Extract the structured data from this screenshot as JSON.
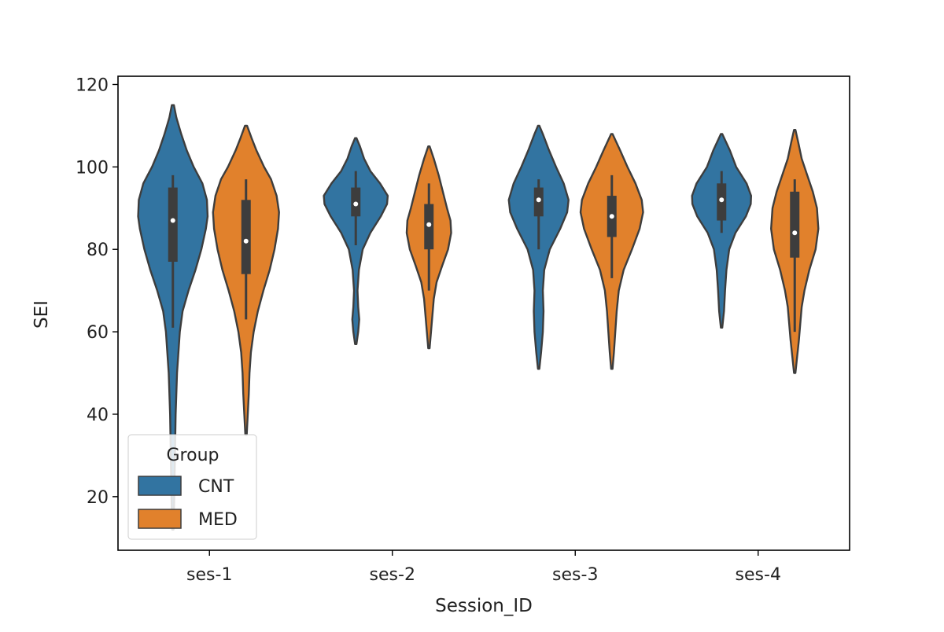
{
  "chart_data": {
    "type": "violin",
    "title": "",
    "xlabel": "Session_ID",
    "ylabel": "SEI",
    "ylim": [
      7,
      122
    ],
    "yticks": [
      20,
      40,
      60,
      80,
      100,
      120
    ],
    "categories": [
      "ses-1",
      "ses-2",
      "ses-3",
      "ses-4"
    ],
    "legend": {
      "title": "Group",
      "location": "lower left"
    },
    "series": [
      {
        "name": "CNT",
        "color": "#3274a1",
        "violins": [
          {
            "min": 12,
            "max": 115,
            "q1": 77,
            "median": 87,
            "q3": 95,
            "whisker_low": 61,
            "whisker_high": 98,
            "profile": [
              [
                12,
                0.02
              ],
              [
                20,
                0.04
              ],
              [
                30,
                0.06
              ],
              [
                40,
                0.08
              ],
              [
                50,
                0.12
              ],
              [
                60,
                0.2
              ],
              [
                65,
                0.28
              ],
              [
                70,
                0.45
              ],
              [
                75,
                0.65
              ],
              [
                80,
                0.82
              ],
              [
                85,
                0.95
              ],
              [
                88,
                1.0
              ],
              [
                92,
                0.98
              ],
              [
                96,
                0.85
              ],
              [
                100,
                0.6
              ],
              [
                104,
                0.4
              ],
              [
                108,
                0.24
              ],
              [
                112,
                0.1
              ],
              [
                115,
                0.03
              ]
            ]
          },
          {
            "min": 57,
            "max": 107,
            "q1": 88,
            "median": 91,
            "q3": 95,
            "whisker_low": 81,
            "whisker_high": 99,
            "profile": [
              [
                57,
                0.02
              ],
              [
                60,
                0.07
              ],
              [
                63,
                0.1
              ],
              [
                66,
                0.07
              ],
              [
                70,
                0.05
              ],
              [
                75,
                0.09
              ],
              [
                80,
                0.2
              ],
              [
                84,
                0.42
              ],
              [
                88,
                0.72
              ],
              [
                91,
                0.9
              ],
              [
                93,
                0.92
              ],
              [
                96,
                0.7
              ],
              [
                99,
                0.42
              ],
              [
                102,
                0.24
              ],
              [
                105,
                0.12
              ],
              [
                107,
                0.02
              ]
            ]
          },
          {
            "min": 51,
            "max": 110,
            "q1": 88,
            "median": 92,
            "q3": 95,
            "whisker_low": 80,
            "whisker_high": 97,
            "profile": [
              [
                51,
                0.02
              ],
              [
                55,
                0.07
              ],
              [
                60,
                0.12
              ],
              [
                65,
                0.14
              ],
              [
                70,
                0.12
              ],
              [
                75,
                0.16
              ],
              [
                80,
                0.32
              ],
              [
                85,
                0.62
              ],
              [
                89,
                0.82
              ],
              [
                92,
                0.86
              ],
              [
                96,
                0.72
              ],
              [
                100,
                0.5
              ],
              [
                104,
                0.3
              ],
              [
                108,
                0.12
              ],
              [
                110,
                0.02
              ]
            ]
          },
          {
            "min": 61,
            "max": 108,
            "q1": 87,
            "median": 92,
            "q3": 96,
            "whisker_low": 84,
            "whisker_high": 99,
            "profile": [
              [
                61,
                0.02
              ],
              [
                65,
                0.07
              ],
              [
                70,
                0.1
              ],
              [
                75,
                0.14
              ],
              [
                80,
                0.22
              ],
              [
                84,
                0.4
              ],
              [
                88,
                0.7
              ],
              [
                91,
                0.84
              ],
              [
                93,
                0.85
              ],
              [
                96,
                0.72
              ],
              [
                100,
                0.42
              ],
              [
                104,
                0.24
              ],
              [
                108,
                0.02
              ]
            ]
          }
        ]
      },
      {
        "name": "MED",
        "color": "#e1812c",
        "violins": [
          {
            "min": 35,
            "max": 110,
            "q1": 74,
            "median": 82,
            "q3": 92,
            "whisker_low": 63,
            "whisker_high": 97,
            "profile": [
              [
                35,
                0.02
              ],
              [
                40,
                0.05
              ],
              [
                45,
                0.08
              ],
              [
                50,
                0.1
              ],
              [
                55,
                0.14
              ],
              [
                60,
                0.22
              ],
              [
                65,
                0.34
              ],
              [
                70,
                0.5
              ],
              [
                75,
                0.68
              ],
              [
                80,
                0.82
              ],
              [
                85,
                0.92
              ],
              [
                89,
                0.95
              ],
              [
                93,
                0.88
              ],
              [
                97,
                0.72
              ],
              [
                100,
                0.52
              ],
              [
                104,
                0.3
              ],
              [
                107,
                0.16
              ],
              [
                110,
                0.03
              ]
            ]
          },
          {
            "min": 56,
            "max": 105,
            "q1": 80,
            "median": 86,
            "q3": 91,
            "whisker_low": 70,
            "whisker_high": 96,
            "profile": [
              [
                56,
                0.02
              ],
              [
                60,
                0.06
              ],
              [
                64,
                0.1
              ],
              [
                68,
                0.14
              ],
              [
                72,
                0.22
              ],
              [
                76,
                0.38
              ],
              [
                80,
                0.55
              ],
              [
                84,
                0.64
              ],
              [
                87,
                0.62
              ],
              [
                90,
                0.52
              ],
              [
                94,
                0.4
              ],
              [
                98,
                0.28
              ],
              [
                102,
                0.14
              ],
              [
                105,
                0.02
              ]
            ]
          },
          {
            "min": 51,
            "max": 108,
            "q1": 83,
            "median": 88,
            "q3": 93,
            "whisker_low": 73,
            "whisker_high": 98,
            "profile": [
              [
                51,
                0.02
              ],
              [
                55,
                0.06
              ],
              [
                60,
                0.1
              ],
              [
                65,
                0.14
              ],
              [
                70,
                0.2
              ],
              [
                75,
                0.34
              ],
              [
                80,
                0.58
              ],
              [
                85,
                0.8
              ],
              [
                89,
                0.9
              ],
              [
                92,
                0.86
              ],
              [
                96,
                0.68
              ],
              [
                100,
                0.45
              ],
              [
                104,
                0.24
              ],
              [
                108,
                0.02
              ]
            ]
          },
          {
            "min": 50,
            "max": 109,
            "q1": 78,
            "median": 84,
            "q3": 94,
            "whisker_low": 60,
            "whisker_high": 97,
            "profile": [
              [
                50,
                0.02
              ],
              [
                54,
                0.07
              ],
              [
                58,
                0.12
              ],
              [
                62,
                0.16
              ],
              [
                66,
                0.2
              ],
              [
                70,
                0.28
              ],
              [
                75,
                0.42
              ],
              [
                80,
                0.6
              ],
              [
                85,
                0.68
              ],
              [
                90,
                0.64
              ],
              [
                94,
                0.52
              ],
              [
                98,
                0.36
              ],
              [
                102,
                0.2
              ],
              [
                106,
                0.1
              ],
              [
                109,
                0.02
              ]
            ]
          }
        ]
      }
    ]
  }
}
